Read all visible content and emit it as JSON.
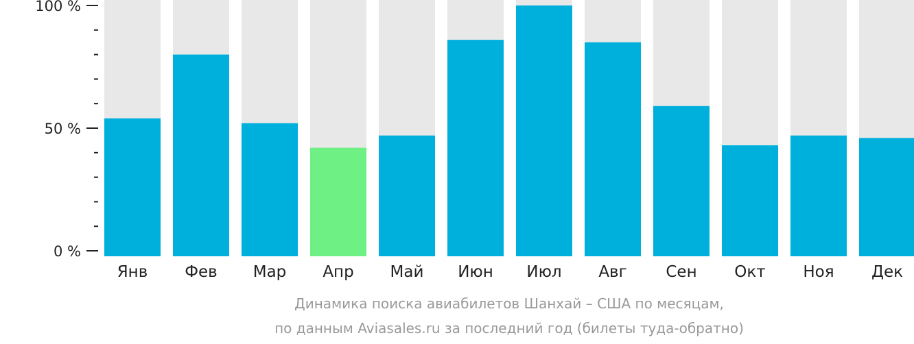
{
  "chart_data": {
    "type": "bar",
    "categories": [
      "Янв",
      "Фев",
      "Мар",
      "Апр",
      "Май",
      "Июн",
      "Июл",
      "Авг",
      "Сен",
      "Окт",
      "Ноя",
      "Дек"
    ],
    "values": [
      54,
      80,
      52,
      42,
      47,
      86,
      100,
      85,
      59,
      43,
      47,
      46
    ],
    "ylim": [
      0,
      100
    ],
    "y_ticks": [
      {
        "value": 0,
        "label": "0 %"
      },
      {
        "value": 50,
        "label": "50 %"
      },
      {
        "value": 100,
        "label": "100 %"
      }
    ],
    "highlight_index": 3,
    "colors": {
      "bar": "#00b0dc",
      "highlight": "#6ff085",
      "background_bar": "#e8e8e8",
      "axis": "#222222"
    }
  },
  "caption": {
    "line1": "Динамика поиска авиабилетов Шанхай – США по месяцам,",
    "line2": "по данным Aviasales.ru за последний год (билеты туда-обратно)"
  }
}
